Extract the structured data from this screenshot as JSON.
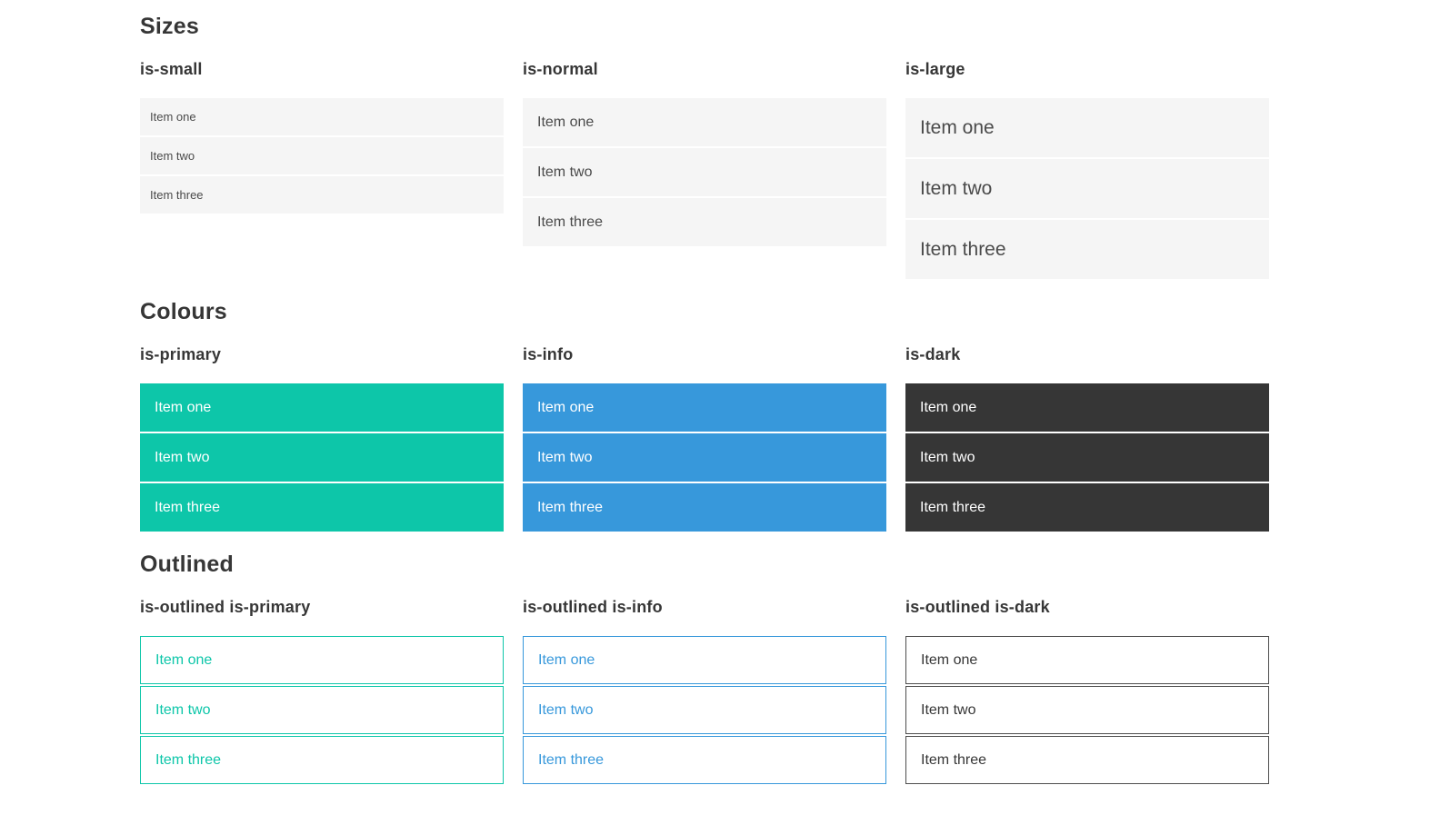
{
  "colors": {
    "primary": "#0dc6a9",
    "info": "#3798db",
    "dark": "#363636",
    "dark_border": "#4d4d4d",
    "list_item_bg": "#f5f5f5",
    "text": "#4a4a4a",
    "heading": "#363636"
  },
  "sections": [
    {
      "title": "Sizes",
      "groups": [
        {
          "heading": "is-small",
          "items": [
            "Item one",
            "Item two",
            "Item three"
          ]
        },
        {
          "heading": "is-normal",
          "items": [
            "Item one",
            "Item two",
            "Item three"
          ]
        },
        {
          "heading": "is-large",
          "items": [
            "Item one",
            "Item two",
            "Item three"
          ]
        }
      ]
    },
    {
      "title": "Colours",
      "groups": [
        {
          "heading": "is-primary",
          "items": [
            "Item one",
            "Item two",
            "Item three"
          ]
        },
        {
          "heading": "is-info",
          "items": [
            "Item one",
            "Item two",
            "Item three"
          ]
        },
        {
          "heading": "is-dark",
          "items": [
            "Item one",
            "Item two",
            "Item three"
          ]
        }
      ]
    },
    {
      "title": "Outlined",
      "groups": [
        {
          "heading": "is-outlined is-primary",
          "items": [
            "Item one",
            "Item two",
            "Item three"
          ]
        },
        {
          "heading": "is-outlined is-info",
          "items": [
            "Item one",
            "Item two",
            "Item three"
          ]
        },
        {
          "heading": "is-outlined is-dark",
          "items": [
            "Item one",
            "Item two",
            "Item three"
          ]
        }
      ]
    }
  ]
}
